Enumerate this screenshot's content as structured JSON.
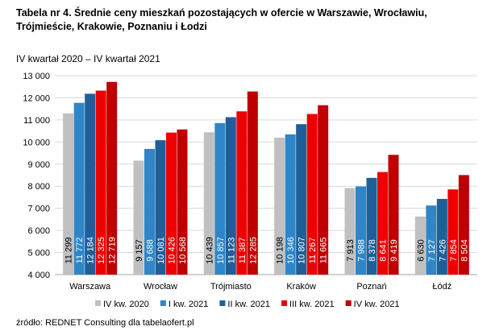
{
  "chart_data": {
    "type": "bar",
    "title": "Tabela nr 4. Średnie ceny mieszkań pozostających w ofercie w Warszawie, Wrocławiu, Trójmieście, Krakowie, Poznaniu i Łodzi",
    "subtitle": "IV kwartał 2020 – IV kwartał 2021",
    "source": "źródło: REDNET Consulting dla tabelaofert.pl",
    "categories": [
      "Warszawa",
      "Wrocław",
      "Trójmiasto",
      "Kraków",
      "Poznań",
      "Łódź"
    ],
    "series": [
      {
        "name": "IV kw. 2020",
        "color": "#c0c0c0",
        "label_color": "#000000",
        "values": [
          11299,
          9157,
          10439,
          10198,
          7913,
          6630
        ]
      },
      {
        "name": "I kw. 2021",
        "color": "#2e86c8",
        "label_color": "#ffffff",
        "values": [
          11772,
          9688,
          10857,
          10346,
          7988,
          7127
        ]
      },
      {
        "name": "II kw. 2021",
        "color": "#1f5f99",
        "label_color": "#ffffff",
        "values": [
          12184,
          10081,
          11123,
          10807,
          8378,
          7426
        ]
      },
      {
        "name": "III kw. 2021",
        "color": "#ee0000",
        "label_color": "#ffffff",
        "values": [
          12325,
          10426,
          11387,
          11267,
          8641,
          7854
        ]
      },
      {
        "name": "IV kw. 2021",
        "color": "#c00000",
        "label_color": "#ffffff",
        "values": [
          12719,
          10568,
          12285,
          11665,
          9419,
          8504
        ]
      }
    ],
    "ylim": [
      4000,
      13000
    ],
    "yticks": [
      4000,
      5000,
      6000,
      7000,
      8000,
      9000,
      10000,
      11000,
      12000,
      13000
    ],
    "ytick_labels": [
      "4 000",
      "5 000",
      "6 000",
      "7 000",
      "8 000",
      "9 000",
      "10 000",
      "11 000",
      "12 000",
      "13 000"
    ],
    "grid": true,
    "legend": "bottom",
    "data_labels": "rotated-inside"
  }
}
